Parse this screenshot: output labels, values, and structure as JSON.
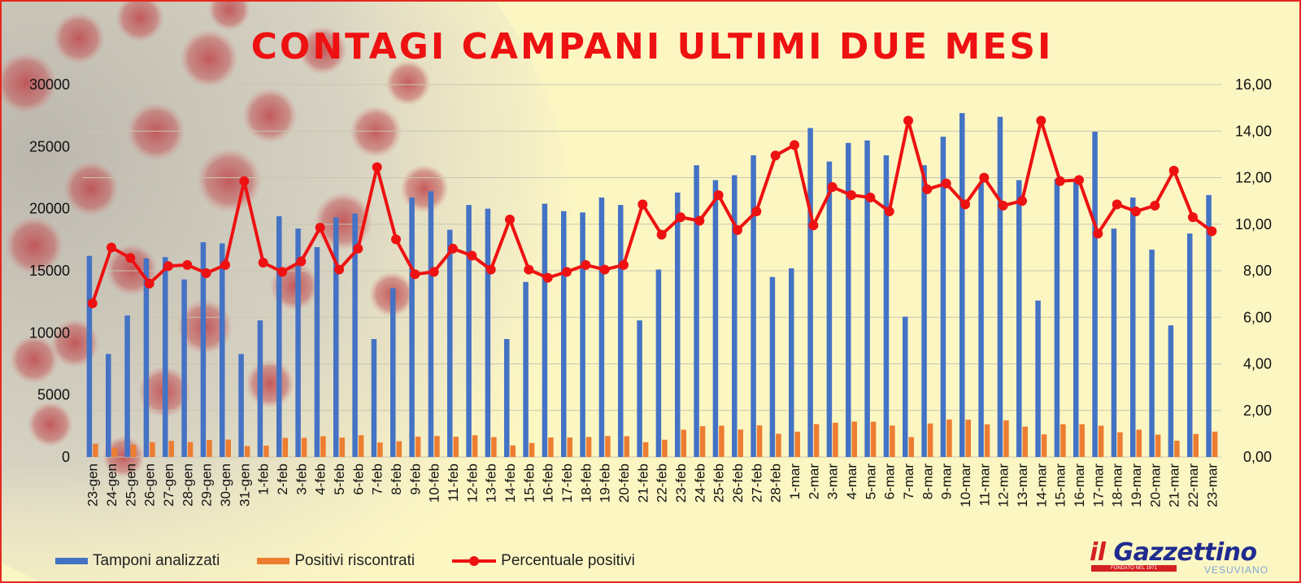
{
  "title": "CONTAGI CAMPANI ULTIMI DUE MESI",
  "legend": {
    "tamponi": "Tamponi analizzati",
    "positivi": "Positivi riscontrati",
    "percentuale": "Percentuale positivi"
  },
  "logo": {
    "main_prefix": "il",
    "main_name": "Gazzettino",
    "tagline": "FONDATO NEL 1971",
    "sub": "VESUVIANO"
  },
  "colors": {
    "tamponi": "#4472c4",
    "positivi": "#ed7d31",
    "percentuale": "#ee1111",
    "title": "#ee1111",
    "background": "#fcf6c3",
    "border": "#e4281f"
  },
  "chart_data": {
    "type": "bar",
    "title": "CONTAGI CAMPANI ULTIMI DUE MESI",
    "categories": [
      "23-gen",
      "24-gen",
      "25-gen",
      "26-gen",
      "27-gen",
      "28-gen",
      "29-gen",
      "30-gen",
      "31-gen",
      "1-feb",
      "2-feb",
      "3-feb",
      "4-feb",
      "5-feb",
      "6-feb",
      "7-feb",
      "8-feb",
      "9-feb",
      "10-feb",
      "11-feb",
      "12-feb",
      "13-feb",
      "14-feb",
      "15-feb",
      "16-feb",
      "17-feb",
      "18-feb",
      "19-feb",
      "20-feb",
      "21-feb",
      "22-feb",
      "23-feb",
      "24-feb",
      "25-feb",
      "26-feb",
      "27-feb",
      "28-feb",
      "1-mar",
      "2-mar",
      "3-mar",
      "4-mar",
      "5-mar",
      "6-mar",
      "7-mar",
      "8-mar",
      "9-mar",
      "10-mar",
      "11-mar",
      "12-mar",
      "13-mar",
      "14-mar",
      "15-mar",
      "16-mar",
      "17-mar",
      "18-mar",
      "19-mar",
      "20-mar",
      "21-mar",
      "22-mar",
      "23-mar"
    ],
    "series": [
      {
        "name": "Tamponi analizzati",
        "type": "bar",
        "axis": "left",
        "values": [
          16200,
          8300,
          11400,
          16000,
          16100,
          14300,
          17300,
          17200,
          8300,
          11000,
          19400,
          18400,
          16900,
          19300,
          19600,
          9500,
          13600,
          20900,
          21400,
          18300,
          20300,
          20000,
          9500,
          14100,
          20400,
          19800,
          19700,
          20900,
          20300,
          11000,
          15100,
          21300,
          23500,
          22300,
          22700,
          24300,
          14500,
          15200,
          26500,
          23800,
          25300,
          25500,
          24300,
          11300,
          23500,
          25800,
          27700,
          22100,
          27400,
          22300,
          12600,
          22400,
          22200,
          26200,
          18400,
          20900,
          16700,
          10600,
          18000,
          21100
        ]
      },
      {
        "name": "Positivi riscontrati",
        "type": "bar",
        "axis": "left",
        "values": [
          1070,
          750,
          980,
          1200,
          1300,
          1200,
          1370,
          1400,
          880,
          910,
          1540,
          1540,
          1670,
          1560,
          1750,
          1170,
          1270,
          1640,
          1690,
          1630,
          1750,
          1600,
          930,
          1130,
          1570,
          1570,
          1610,
          1680,
          1670,
          1190,
          1390,
          2200,
          2480,
          2520,
          2210,
          2550,
          1870,
          2040,
          2650,
          2760,
          2850,
          2840,
          2530,
          1600,
          2700,
          3020,
          3000,
          2630,
          2950,
          2450,
          1820,
          2640,
          2640,
          2520,
          1990,
          2200,
          1800,
          1310,
          1850,
          2040
        ]
      },
      {
        "name": "Percentuale positivi",
        "type": "line",
        "axis": "right",
        "values": [
          6.6,
          9.0,
          8.55,
          7.45,
          8.2,
          8.25,
          7.9,
          8.25,
          11.85,
          8.35,
          7.95,
          8.4,
          9.85,
          8.05,
          8.95,
          12.45,
          9.35,
          7.85,
          7.95,
          8.95,
          8.65,
          8.05,
          10.2,
          8.05,
          7.7,
          7.95,
          8.25,
          8.05,
          8.25,
          10.85,
          9.55,
          10.3,
          10.15,
          11.25,
          9.75,
          10.55,
          12.95,
          13.4,
          9.95,
          11.6,
          11.25,
          11.15,
          10.55,
          14.45,
          11.5,
          11.75,
          10.85,
          12.0,
          10.8,
          11.0,
          14.45,
          11.85,
          11.9,
          9.6,
          10.85,
          10.55,
          10.8,
          12.3,
          10.3,
          9.7
        ]
      }
    ],
    "y_left": {
      "min": 0,
      "max": 30000,
      "ticks": [
        "0",
        "5000",
        "10000",
        "15000",
        "20000",
        "25000",
        "30000"
      ]
    },
    "y_right": {
      "min": 0,
      "max": 16,
      "ticks": [
        "0,00",
        "2,00",
        "4,00",
        "6,00",
        "8,00",
        "10,00",
        "12,00",
        "14,00",
        "16,00"
      ]
    },
    "grid": true,
    "legend_position": "bottom-left"
  }
}
